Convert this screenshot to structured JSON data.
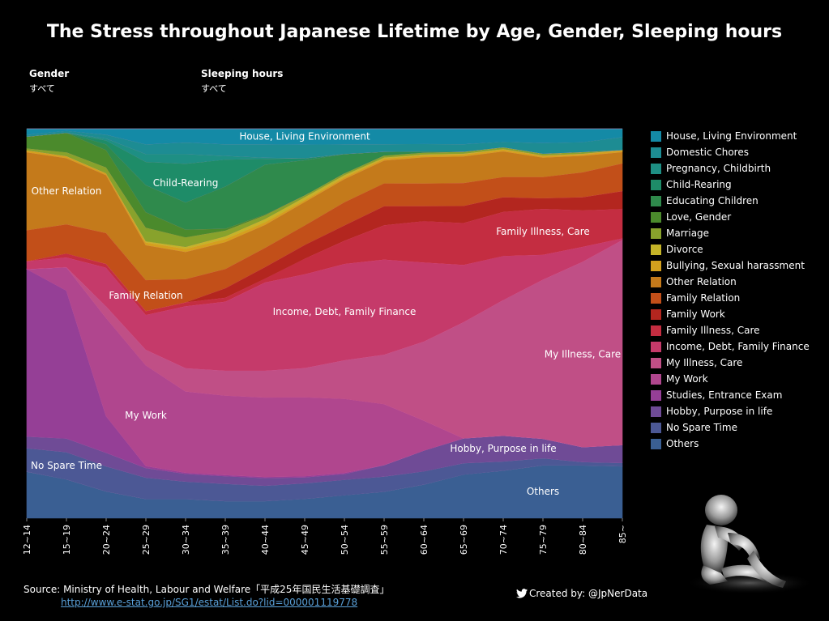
{
  "title": "The Stress throughout Japanese Lifetime by Age, Gender, Sleeping hours",
  "filters": [
    {
      "label": "Gender",
      "value": "すべて"
    },
    {
      "label": "Sleeping hours",
      "value": "すべて"
    }
  ],
  "source": {
    "text": "Source: Ministry of Health, Labour and Welfare「平成25年国民生活基礎調査」",
    "url": "http://www.e-stat.go.jp/SG1/estat/List.do?lid=000001119778"
  },
  "credit": "Created by: @JpNerData",
  "icons": {
    "credit": "twitter-bird-icon",
    "decoration": "sitting-mannequin-figure"
  },
  "chart_data": {
    "type": "area",
    "stacking": "percent",
    "ylim": [
      0,
      100
    ],
    "x": [
      "12~14",
      "15~19",
      "20~24",
      "25~29",
      "30~34",
      "35~39",
      "40~44",
      "45~49",
      "50~54",
      "55~59",
      "60~64",
      "65~69",
      "70~74",
      "75~79",
      "80~84",
      "85~"
    ],
    "series": [
      {
        "name": "Others",
        "color": "#3a5f93",
        "label": "Others",
        "values": [
          12,
          10,
          7,
          5,
          5,
          4.5,
          4.5,
          5,
          6,
          7,
          9,
          11.5,
          13,
          15,
          16,
          16
        ]
      },
      {
        "name": "No Spare Time",
        "color": "#4c5895",
        "label": "No Spare Time",
        "values": [
          6,
          7,
          6.5,
          5.5,
          4.5,
          4.5,
          4,
          4,
          4,
          4,
          3.5,
          3,
          2.5,
          2,
          1,
          1
        ]
      },
      {
        "name": "Hobby,  Purpose in life",
        "color": "#6f4b96",
        "label": "Hobby,  Purpose in life",
        "values": [
          3,
          3.5,
          3.5,
          2.5,
          2,
          2,
          2,
          1.5,
          1.5,
          3,
          5.5,
          6.5,
          7,
          5.5,
          4.5,
          5.5
        ]
      },
      {
        "name": "Studies,  Entrance Exam",
        "color": "#953f96",
        "label": "",
        "values": [
          43,
          38,
          9.5,
          0.5,
          0.3,
          0.3,
          0.3,
          0.3,
          0.3,
          0,
          0,
          0,
          0,
          0,
          0,
          0
        ]
      },
      {
        "name": "My Work",
        "color": "#b0468e",
        "label": "My Work",
        "values": [
          0,
          6,
          25.5,
          26,
          21,
          20.7,
          20.7,
          20.2,
          19.2,
          16,
          8,
          0,
          0,
          0,
          0,
          0
        ]
      },
      {
        "name": "My Illness,  Care",
        "color": "#c04f86",
        "label": "My Illness,  Care",
        "values": [
          0,
          0,
          3,
          4,
          6,
          6.5,
          7,
          7.5,
          10,
          13,
          21,
          30.5,
          37,
          45,
          56,
          63
        ]
      },
      {
        "name": "Income,  Debt,  Family Finance",
        "color": "#c53a6a",
        "label": "Income,  Debt,  Family Finance",
        "values": [
          2,
          2.5,
          10,
          9,
          16,
          18,
          23,
          24,
          25,
          25,
          21,
          15,
          12,
          7,
          4.5,
          0.5
        ]
      },
      {
        "name": "Family Illness,  Care",
        "color": "#c42d41",
        "label": "Family Illness,  Care",
        "values": [
          0,
          1,
          1,
          1,
          1,
          1,
          1,
          4,
          6,
          9,
          11,
          11,
          12,
          13,
          11,
          9
        ]
      },
      {
        "name": "Family Work",
        "color": "#b3261f",
        "label": "",
        "values": [
          0,
          0,
          0,
          0,
          0,
          2.5,
          3,
          3.5,
          4,
          5,
          4,
          4.5,
          4,
          3,
          4,
          5.5
        ]
      },
      {
        "name": "Family Relation",
        "color": "#c24f19",
        "label": "Family Relation",
        "values": [
          8,
          7.5,
          8,
          8,
          6,
          5,
          5,
          5,
          6,
          6,
          6,
          6,
          5.5,
          6,
          7.5,
          8.5
        ]
      },
      {
        "name": "Other Relation",
        "color": "#c47a1b",
        "label": "Other Relation",
        "values": [
          20,
          17,
          15,
          9,
          7,
          7,
          6,
          6,
          6,
          6,
          7,
          7,
          7,
          5.5,
          5,
          3.5
        ]
      },
      {
        "name": "Bullying,  Sexual harassment",
        "color": "#d4a01e",
        "label": "",
        "values": [
          0.5,
          0.5,
          0.5,
          0.7,
          0.8,
          0.8,
          0.7,
          0.5,
          0.5,
          0.5,
          0.5,
          0.5,
          0.5,
          0.5,
          0.5,
          0.5
        ]
      },
      {
        "name": "Divorce",
        "color": "#c5b428",
        "label": "",
        "values": [
          0,
          0,
          0,
          0.3,
          0.5,
          0.7,
          0.8,
          0.7,
          0.5,
          0.3,
          0.2,
          0.2,
          0.1,
          0.1,
          0.1,
          0.1
        ]
      },
      {
        "name": "Marriage",
        "color": "#88a22c",
        "label": "",
        "values": [
          0.5,
          1,
          1.5,
          3.5,
          2.5,
          1.5,
          1,
          0.5,
          0.5,
          0.5,
          0.5,
          0.5,
          0.5,
          0.5,
          0.5,
          0
        ]
      },
      {
        "name": "Love,  Gender",
        "color": "#4b8a2c",
        "label": "",
        "values": [
          3,
          5,
          4.5,
          4,
          2,
          0.5,
          0.2,
          0,
          0,
          0,
          0,
          0,
          0,
          0,
          0,
          0
        ]
      },
      {
        "name": "Educating Children",
        "color": "#2f8a4c",
        "label": "",
        "values": [
          0,
          0,
          1.5,
          7,
          7,
          11,
          13,
          9,
          5,
          1,
          0.3,
          0,
          0,
          0,
          0,
          0
        ]
      },
      {
        "name": "Child-Rearing",
        "color": "#1e8c68",
        "label": "Child-Rearing",
        "values": [
          0,
          0,
          1,
          6,
          10,
          7,
          1.5,
          0.5,
          0,
          0,
          0,
          0,
          0,
          0,
          0,
          0
        ]
      },
      {
        "name": "Pregnancy,  Childbirth",
        "color": "#1e8f84",
        "label": "",
        "values": [
          0,
          0,
          0.5,
          2,
          2.5,
          1,
          0.3,
          0,
          0,
          0,
          0,
          0,
          0,
          0,
          0,
          0
        ]
      },
      {
        "name": "Domestic Chores",
        "color": "#1d8c93",
        "label": "",
        "values": [
          0.5,
          0.5,
          1,
          2.5,
          3,
          3,
          3.5,
          3.5,
          2.5,
          2,
          2,
          2,
          1.5,
          3,
          3,
          4
        ]
      },
      {
        "name": "House,  Living Environment",
        "color": "#148aa6",
        "label": "House,  Living Environment",
        "values": [
          1.5,
          0.5,
          1.5,
          4,
          3.5,
          4,
          4,
          4,
          4,
          4,
          4,
          4,
          3.5,
          4,
          4,
          2.5
        ]
      }
    ]
  }
}
